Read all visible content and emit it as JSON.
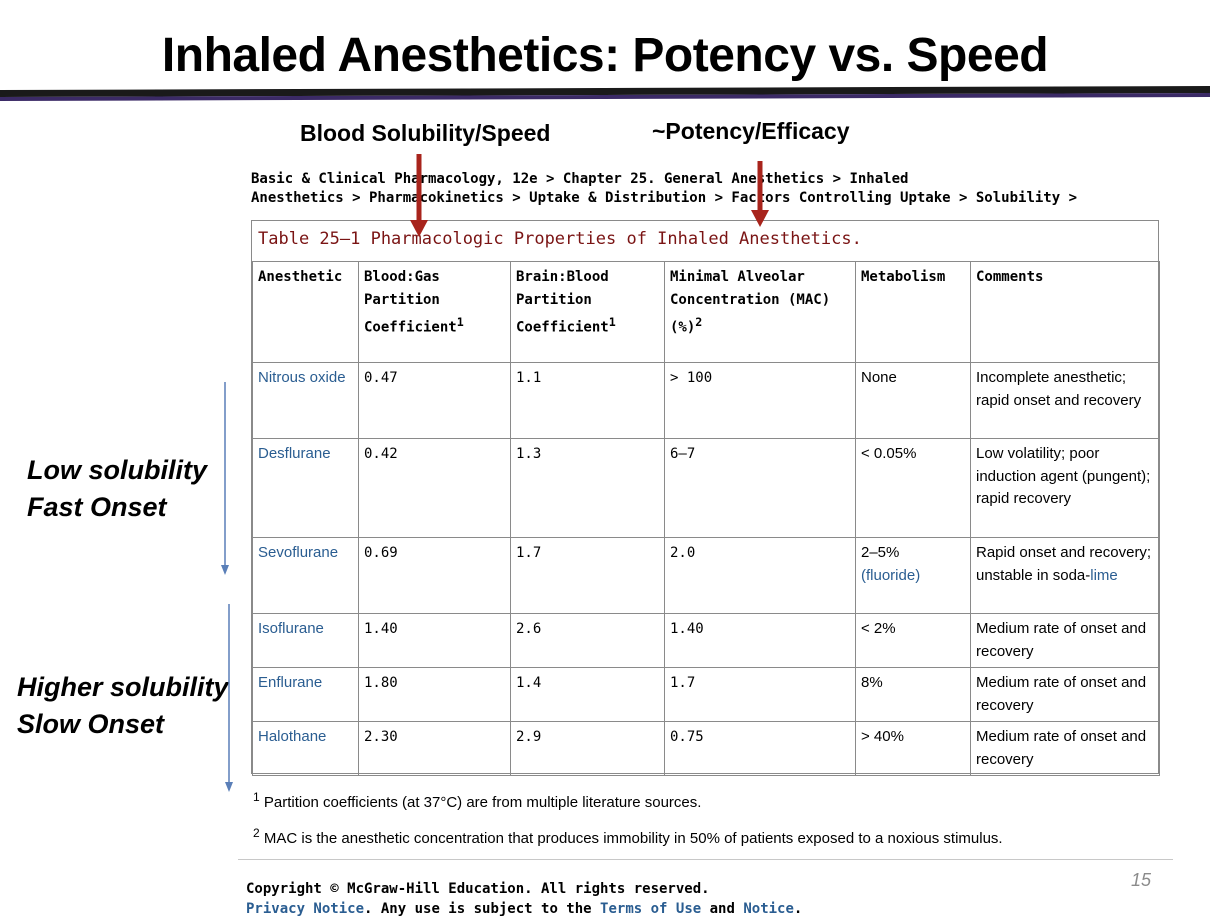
{
  "slide": {
    "title": "Inhaled Anesthetics: Potency vs. Speed",
    "label_solubility": "Blood Solubility/Speed",
    "label_potency": "~Potency/Efficacy",
    "note_low_1": "Low solubility",
    "note_low_2": "Fast Onset",
    "note_high_1": "Higher solubility",
    "note_high_2": "Slow Onset",
    "page_number": "15",
    "colors": {
      "rule_dark": "#1a1a1a",
      "rule_purple": "#3b2a66",
      "arrow_red": "#a8241c",
      "arrow_blue": "#5a7fb8",
      "link_blue": "#2a5d91",
      "caption_red": "#7a1414"
    }
  },
  "source": {
    "breadcrumb_line1": "Basic & Clinical Pharmacology, 12e > Chapter 25. General Anesthetics > Inhaled",
    "breadcrumb_line2": "Anesthetics > Pharmacokinetics > Uptake & Distribution > Factors Controlling Uptake > Solubility >"
  },
  "table": {
    "caption": "Table 25–1 Pharmacologic Properties of Inhaled Anesthetics.",
    "headers": {
      "anesthetic": "Anesthetic",
      "blood_gas": "Blood:Gas Partition Coefficient",
      "blood_gas_sup": "1",
      "brain_blood": "Brain:Blood Partition Coefficient",
      "brain_blood_sup": "1",
      "mac": "Minimal Alveolar Concentration (MAC) (%)",
      "mac_sup": "2",
      "metabolism": "Metabolism",
      "comments": "Comments"
    },
    "rows": [
      {
        "name": "Nitrous oxide",
        "blood_gas": "0.47",
        "brain_blood": "1.1",
        "mac": "> 100",
        "metabolism": "None",
        "comments": "Incomplete anesthetic; rapid onset and recovery"
      },
      {
        "name": "Desflurane",
        "blood_gas": "0.42",
        "brain_blood": "1.3",
        "mac": "6–7",
        "metabolism": "< 0.05%",
        "comments": "Low volatility; poor induction agent (pungent); rapid recovery"
      },
      {
        "name": "Sevoflurane",
        "blood_gas": "0.69",
        "brain_blood": "1.7",
        "mac": "2.0",
        "metabolism": "2–5%",
        "metabolism_link": "(fluoride)",
        "comments": "Rapid onset and recovery; unstable in soda-",
        "comments_link": "lime"
      },
      {
        "name": "Isoflurane",
        "blood_gas": "1.40",
        "brain_blood": "2.6",
        "mac": "1.40",
        "metabolism": "< 2%",
        "comments": "Medium rate of onset and recovery"
      },
      {
        "name": "Enflurane",
        "blood_gas": "1.80",
        "brain_blood": "1.4",
        "mac": "1.7",
        "metabolism": "8%",
        "comments": "Medium rate of onset and recovery"
      },
      {
        "name": "Halothane",
        "blood_gas": "2.30",
        "brain_blood": "2.9",
        "mac": "0.75",
        "metabolism": "> 40%",
        "comments": "Medium rate of onset and recovery"
      }
    ]
  },
  "footnotes": {
    "fn1_marker": "1",
    "fn1_text": "Partition coefficients (at 37°C) are from multiple literature sources.",
    "fn2_marker": "2",
    "fn2_text": "MAC is the anesthetic concentration that produces immobility in 50% of patients exposed to a noxious stimulus."
  },
  "footer": {
    "copyright": "Copyright © McGraw-Hill Education. All rights reserved.",
    "privacy_link": "Privacy Notice",
    "middle_text": ". Any use is subject to the ",
    "terms_link": "Terms of Use",
    "and_text": " and ",
    "notice_link": "Notice",
    "end_text": "."
  }
}
